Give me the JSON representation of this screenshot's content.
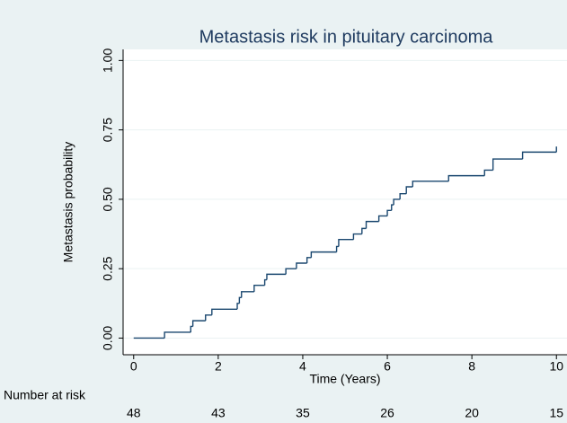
{
  "chart_data": {
    "type": "step",
    "title": "Metastasis risk in pituitary carcinoma",
    "x_label": "Time (Years)",
    "y_label": "Metastasis probability",
    "x": [
      0,
      0.73,
      1.35,
      1.4,
      1.7,
      1.85,
      2.45,
      2.5,
      2.55,
      2.85,
      3.1,
      3.15,
      3.6,
      3.85,
      4.1,
      4.2,
      4.8,
      4.85,
      5.2,
      5.4,
      5.5,
      5.8,
      6.0,
      6.1,
      6.15,
      6.3,
      6.45,
      6.6,
      7.45,
      8.3,
      8.5,
      9.2,
      10
    ],
    "series": [
      {
        "color": "#1a476f",
        "values": [
          0,
          0.021,
          0.042,
          0.0625,
          0.083,
          0.104,
          0.125,
          0.146,
          0.167,
          0.19,
          0.21,
          0.23,
          0.25,
          0.27,
          0.29,
          0.31,
          0.33,
          0.355,
          0.375,
          0.395,
          0.42,
          0.44,
          0.46,
          0.48,
          0.5,
          0.52,
          0.545,
          0.565,
          0.585,
          0.605,
          0.645,
          0.67,
          0.69
        ]
      }
    ],
    "xlim": [
      -0.25,
      10.25
    ],
    "ylim": [
      -0.06,
      1.04
    ],
    "xticks": [
      0,
      2,
      4,
      6,
      8,
      10
    ],
    "yticks": [
      {
        "value": 0,
        "label": "0.00"
      },
      {
        "value": 0.25,
        "label": "0.25"
      },
      {
        "value": 0.5,
        "label": "0.50"
      },
      {
        "value": 0.75,
        "label": "0.75"
      },
      {
        "value": 1,
        "label": "1.00"
      }
    ],
    "grid": true,
    "risk_table": {
      "label": "Number at risk",
      "x": [
        0,
        2,
        4,
        6,
        8,
        10
      ],
      "values": [
        48,
        43,
        35,
        26,
        20,
        15
      ]
    }
  }
}
